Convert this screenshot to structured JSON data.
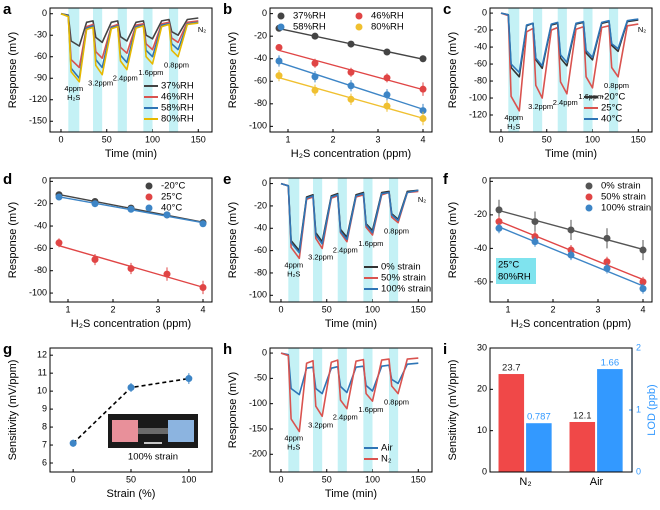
{
  "chart_data": [
    {
      "type": "line",
      "label": "a",
      "xlabel": "Time (min)",
      "ylabel": "Response (mV)",
      "x": [
        0,
        8,
        11,
        20,
        28,
        35,
        38,
        45,
        55,
        62,
        65,
        72,
        82,
        90,
        93,
        100,
        110,
        118,
        121,
        128,
        138,
        150
      ],
      "exposures": [
        [
          8,
          20
        ],
        [
          35,
          45
        ],
        [
          62,
          72
        ],
        [
          90,
          100
        ],
        [
          118,
          128
        ]
      ],
      "series": [
        {
          "name": "37%RH",
          "color": "#444444",
          "values": [
            0,
            -2,
            -38,
            -45,
            -12,
            -10,
            -33,
            -40,
            -12,
            -10,
            -32,
            -38,
            -12,
            -10,
            -30,
            -35,
            -10,
            -8,
            -25,
            -30,
            -8,
            -6
          ]
        },
        {
          "name": "46%RH",
          "color": "#d9534f",
          "values": [
            0,
            -3,
            -64,
            -75,
            -18,
            -15,
            -53,
            -62,
            -18,
            -15,
            -47,
            -55,
            -16,
            -14,
            -42,
            -50,
            -14,
            -12,
            -34,
            -40,
            -12,
            -10
          ]
        },
        {
          "name": "58%RH",
          "color": "#2e75b6",
          "values": [
            0,
            -3,
            -76,
            -90,
            -20,
            -17,
            -64,
            -75,
            -19,
            -17,
            -58,
            -68,
            -18,
            -16,
            -51,
            -60,
            -16,
            -14,
            -42,
            -50,
            -14,
            -12
          ]
        },
        {
          "name": "80%RH",
          "color": "#e6b800",
          "values": [
            0,
            -4,
            -81,
            -95,
            -22,
            -19,
            -72,
            -85,
            -21,
            -18,
            -66,
            -78,
            -20,
            -17,
            -60,
            -70,
            -18,
            -15,
            -51,
            -60,
            -15,
            -13
          ]
        }
      ],
      "annotations": [
        "4ppm",
        "H₂S",
        "3.2ppm",
        "2.4ppm",
        "1.6ppm",
        "0.8ppm"
      ],
      "gas_label": "N₂",
      "xlim": [
        -12,
        165
      ],
      "xticks": [
        0,
        50,
        100,
        150
      ],
      "ylim": [
        -165,
        8
      ],
      "yticks": [
        0,
        -30,
        -60,
        -90,
        -120,
        -150
      ],
      "legend": "lower right"
    },
    {
      "type": "scatter",
      "label": "b",
      "xlabel": "H₂S concentration (ppm)",
      "ylabel": "Response (mV)",
      "x": [
        0.8,
        1.6,
        2.4,
        3.2,
        4
      ],
      "series": [
        {
          "name": "37%RH",
          "color": "#444444",
          "values": [
            -13,
            -20,
            -27,
            -34,
            -40
          ],
          "errors": [
            2,
            2,
            2,
            2,
            3
          ]
        },
        {
          "name": "46%RH",
          "color": "#e04545",
          "values": [
            -30,
            -44,
            -52,
            -57,
            -67
          ],
          "errors": [
            3,
            4,
            4,
            4,
            6
          ]
        },
        {
          "name": "58%RH",
          "color": "#3d85c6",
          "values": [
            -42,
            -56,
            -64,
            -72,
            -86
          ],
          "errors": [
            5,
            5,
            5,
            5,
            6
          ]
        },
        {
          "name": "80%RH",
          "color": "#f0c030",
          "values": [
            -55,
            -68,
            -76,
            -82,
            -93
          ],
          "errors": [
            5,
            5,
            5,
            5,
            6
          ]
        }
      ],
      "fit": true,
      "xlim": [
        0.6,
        4.2
      ],
      "xticks": [
        1,
        2,
        3,
        4
      ],
      "ylim": [
        -105,
        5
      ],
      "yticks": [
        0,
        -20,
        -40,
        -60,
        -80,
        -100
      ],
      "legend": "upper center",
      "legend_columns": 2
    },
    {
      "type": "line",
      "label": "c",
      "xlabel": "Time (min)",
      "ylabel": "Response (mV)",
      "x": [
        0,
        8,
        11,
        20,
        28,
        35,
        38,
        45,
        55,
        62,
        65,
        72,
        82,
        90,
        93,
        100,
        110,
        118,
        121,
        128,
        138,
        150
      ],
      "exposures": [
        [
          8,
          20
        ],
        [
          35,
          45
        ],
        [
          62,
          72
        ],
        [
          90,
          100
        ],
        [
          118,
          128
        ]
      ],
      "series": [
        {
          "name": "-20°C",
          "color": "#333333",
          "values": [
            0,
            -2,
            -64,
            -75,
            -15,
            -12,
            -55,
            -65,
            -14,
            -12,
            -53,
            -62,
            -13,
            -11,
            -47,
            -55,
            -12,
            -10,
            -38,
            -45,
            -10,
            -8
          ]
        },
        {
          "name": "25°C",
          "color": "#d9534f",
          "values": [
            0,
            -3,
            -98,
            -115,
            -22,
            -18,
            -85,
            -100,
            -20,
            -17,
            -81,
            -95,
            -19,
            -16,
            -75,
            -88,
            -17,
            -15,
            -64,
            -75,
            -15,
            -13
          ]
        },
        {
          "name": "40°C",
          "color": "#2e75b6",
          "values": [
            0,
            -2,
            -60,
            -70,
            -14,
            -12,
            -53,
            -62,
            -13,
            -11,
            -49,
            -58,
            -12,
            -10,
            -44,
            -52,
            -11,
            -9,
            -36,
            -42,
            -9,
            -7
          ]
        }
      ],
      "annotations": [
        "4ppm",
        "H₂S",
        "3.2ppm",
        "2.4ppm",
        "1.6ppm",
        "0.8ppm"
      ],
      "gas_label": "N₂",
      "xlim": [
        -12,
        165
      ],
      "xticks": [
        0,
        50,
        100,
        150
      ],
      "ylim": [
        -140,
        6
      ],
      "yticks": [
        0,
        -20,
        -40,
        -60,
        -80,
        -100,
        -120
      ],
      "legend": "lower right"
    },
    {
      "type": "scatter",
      "label": "d",
      "xlabel": "H₂S concentration (ppm)",
      "ylabel": "Response (mV)",
      "x": [
        0.8,
        1.6,
        2.4,
        3.2,
        4
      ],
      "series": [
        {
          "name": "-20°C",
          "color": "#444444",
          "values": [
            -12,
            -18,
            -24,
            -30,
            -37
          ],
          "errors": [
            2,
            2,
            2,
            2,
            2
          ]
        },
        {
          "name": "25°C",
          "color": "#e04545",
          "values": [
            -55,
            -70,
            -78,
            -83,
            -95
          ],
          "errors": [
            4,
            5,
            5,
            6,
            6
          ]
        },
        {
          "name": "40°C",
          "color": "#3d85c6",
          "values": [
            -14,
            -20,
            -25,
            -30,
            -38
          ],
          "errors": [
            2,
            2,
            2,
            2,
            2
          ]
        }
      ],
      "fit": true,
      "xlim": [
        0.6,
        4.2
      ],
      "xticks": [
        1,
        2,
        3,
        4
      ],
      "ylim": [
        -108,
        3
      ],
      "yticks": [
        0,
        -20,
        -40,
        -60,
        -80,
        -100
      ],
      "legend": "upper right"
    },
    {
      "type": "line",
      "label": "e",
      "xlabel": "Time (min)",
      "ylabel": "Response (mV)",
      "x": [
        0,
        8,
        11,
        20,
        28,
        35,
        38,
        45,
        55,
        62,
        65,
        72,
        82,
        90,
        93,
        100,
        110,
        118,
        121,
        128,
        138,
        150
      ],
      "exposures": [
        [
          8,
          20
        ],
        [
          35,
          45
        ],
        [
          62,
          72
        ],
        [
          90,
          100
        ],
        [
          118,
          128
        ]
      ],
      "series": [
        {
          "name": "0% strain",
          "color": "#333333",
          "values": [
            0,
            -2,
            -51,
            -60,
            -12,
            -10,
            -44,
            -52,
            -11,
            -9,
            -41,
            -48,
            -10,
            -8,
            -36,
            -42,
            -8,
            -7,
            -27,
            -32,
            -7,
            -6
          ]
        },
        {
          "name": "50% strain",
          "color": "#d9534f",
          "values": [
            0,
            -2,
            -57,
            -67,
            -14,
            -12,
            -49,
            -58,
            -13,
            -11,
            -44,
            -52,
            -12,
            -10,
            -39,
            -46,
            -10,
            -8,
            -30,
            -35,
            -8,
            -7
          ]
        },
        {
          "name": "100% strain",
          "color": "#2e75b6",
          "values": [
            0,
            -2,
            -53,
            -62,
            -13,
            -11,
            -46,
            -54,
            -12,
            -10,
            -43,
            -50,
            -11,
            -9,
            -37,
            -44,
            -9,
            -8,
            -28,
            -33,
            -8,
            -6
          ]
        }
      ],
      "annotations": [
        "4ppm",
        "H₂S",
        "3.2ppm",
        "2.4ppm",
        "1.6ppm",
        "0.8ppm"
      ],
      "gas_label": "N₂",
      "xlim": [
        -12,
        165
      ],
      "xticks": [
        0,
        50,
        100,
        150
      ],
      "ylim": [
        -106,
        5
      ],
      "yticks": [
        0,
        -20,
        -40,
        -60,
        -80,
        -100
      ],
      "legend": "lower right"
    },
    {
      "type": "scatter",
      "label": "f",
      "xlabel": "H₂S concentration (ppm)",
      "ylabel": "Response (mV)",
      "x": [
        0.8,
        1.6,
        2.4,
        3.2,
        4
      ],
      "series": [
        {
          "name": "0% strain",
          "color": "#555555",
          "values": [
            -17,
            -24,
            -29,
            -34,
            -41
          ],
          "errors": [
            6,
            6,
            6,
            6,
            6
          ]
        },
        {
          "name": "50% strain",
          "color": "#e04545",
          "values": [
            -24,
            -33,
            -41,
            -48,
            -60
          ],
          "errors": [
            3,
            3,
            3,
            3,
            3
          ]
        },
        {
          "name": "100% strain",
          "color": "#3d85c6",
          "values": [
            -28,
            -36,
            -44,
            -52,
            -64
          ],
          "errors": [
            3,
            3,
            3,
            3,
            3
          ]
        }
      ],
      "fit": true,
      "note": [
        "25°C",
        "80%RH"
      ],
      "xlim": [
        0.6,
        4.2
      ],
      "xticks": [
        1,
        2,
        3,
        4
      ],
      "ylim": [
        -72,
        2
      ],
      "yticks": [
        0,
        -20,
        -40,
        -60
      ],
      "legend": "upper right"
    },
    {
      "type": "scatter",
      "label": "g",
      "xlabel": "Strain (%)",
      "ylabel": "Sensitivity (mV/ppm)",
      "x": [
        0,
        50,
        100
      ],
      "series": [
        {
          "color": "#3d85c6",
          "values": [
            7.1,
            10.2,
            10.7
          ],
          "errors": [
            0.2,
            0.25,
            0.3
          ]
        }
      ],
      "connect": "dashed",
      "inset_label": "100% strain",
      "xlim": [
        -20,
        120
      ],
      "xticks": [
        0,
        50,
        100
      ],
      "ylim": [
        5.5,
        12.4
      ],
      "yticks": [
        6,
        7,
        8,
        9,
        10,
        11,
        12
      ]
    },
    {
      "type": "line",
      "label": "h",
      "xlabel": "Time (min)",
      "ylabel": "Response (mV)",
      "x": [
        0,
        8,
        11,
        20,
        28,
        35,
        38,
        45,
        55,
        62,
        65,
        72,
        82,
        90,
        93,
        100,
        110,
        118,
        121,
        128,
        138,
        150
      ],
      "exposures": [
        [
          8,
          20
        ],
        [
          35,
          45
        ],
        [
          62,
          72
        ],
        [
          90,
          100
        ],
        [
          118,
          128
        ]
      ],
      "series": [
        {
          "name": "Air",
          "color": "#2e75b6",
          "values": [
            0,
            -3,
            -70,
            -82,
            -30,
            -28,
            -70,
            -80,
            -30,
            -27,
            -66,
            -78,
            -28,
            -26,
            -64,
            -75,
            -26,
            -24,
            -52,
            -60,
            -22,
            -20
          ]
        },
        {
          "name": "N₂",
          "color": "#d9534f",
          "values": [
            0,
            -5,
            -130,
            -155,
            -20,
            -15,
            -105,
            -125,
            -18,
            -14,
            -93,
            -110,
            -16,
            -13,
            -80,
            -95,
            -14,
            -12,
            -65,
            -80,
            -12,
            -10
          ]
        }
      ],
      "annotations": [
        "4ppm",
        "H₂S",
        "3.2ppm",
        "2.4ppm",
        "1.6ppm",
        "0.8ppm"
      ],
      "xlim": [
        -12,
        165
      ],
      "xticks": [
        0,
        50,
        100,
        150
      ],
      "ylim": [
        -235,
        10
      ],
      "yticks": [
        0,
        -50,
        -100,
        -150,
        -200
      ],
      "legend": "lower right"
    },
    {
      "type": "bar",
      "label": "i",
      "ylabel": "Sensitivity (mV/ppm)",
      "y2label": "LOD (ppb)",
      "categories": [
        "N₂",
        "Air"
      ],
      "series": [
        {
          "color": "#f04848",
          "values": [
            23.7,
            12.1
          ]
        },
        {
          "color": "#3399ff",
          "values": [
            0.787,
            1.66
          ],
          "axis": "y2"
        }
      ],
      "ylim": [
        0,
        30
      ],
      "yticks": [
        0,
        10,
        20,
        30
      ],
      "y2lim": [
        0,
        2
      ],
      "y2ticks": [
        0,
        1,
        2
      ],
      "y2color": "#3399ff"
    }
  ]
}
